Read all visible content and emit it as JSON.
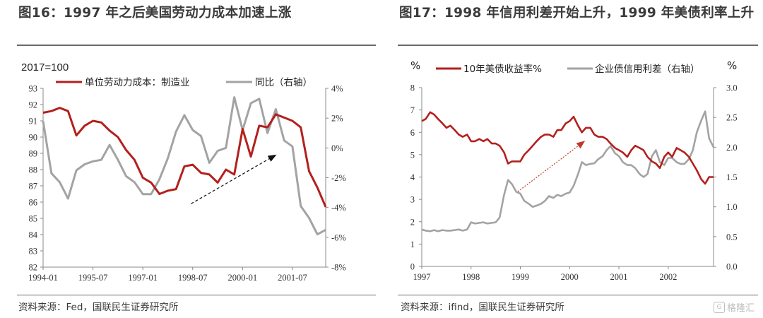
{
  "chart_data": [
    {
      "type": "line",
      "id": "fig16",
      "title": "图16：1997 年之后美国劳动力成本加速上涨",
      "unit_label": "2017=100",
      "source": "资料来源：Fed，国联民生证券研究所",
      "x_ticks": [
        "1994-01",
        "1995-07",
        "1997-01",
        "1998-07",
        "2000-01",
        "2001-07"
      ],
      "x_range": [
        1994.0,
        2002.5
      ],
      "ylim_left": [
        82,
        93
      ],
      "y_ticks_left": [
        "82",
        "83",
        "84",
        "85",
        "86",
        "87",
        "88",
        "89",
        "90",
        "91",
        "92",
        "93"
      ],
      "ylim_right": [
        -8,
        4
      ],
      "y_ticks_right": [
        "4%",
        "2%",
        "0%",
        "-2%",
        "-4%",
        "-6%",
        "-8%"
      ],
      "series": [
        {
          "name": "单位劳动力成本：制造业",
          "axis": "left",
          "color": "#b3201d",
          "x": [
            1994.0,
            1994.25,
            1994.5,
            1994.75,
            1995.0,
            1995.25,
            1995.5,
            1995.75,
            1996.0,
            1996.25,
            1996.5,
            1996.75,
            1997.0,
            1997.25,
            1997.5,
            1997.75,
            1998.0,
            1998.25,
            1998.5,
            1998.75,
            1999.0,
            1999.25,
            1999.5,
            1999.75,
            2000.0,
            2000.25,
            2000.5,
            2000.75,
            2001.0,
            2001.25,
            2001.5,
            2001.75,
            2002.0,
            2002.25,
            2002.5
          ],
          "values": [
            91.5,
            91.6,
            91.8,
            91.6,
            90.1,
            90.7,
            91.0,
            90.9,
            90.4,
            90.0,
            89.2,
            88.6,
            87.5,
            87.2,
            86.5,
            86.7,
            86.8,
            88.2,
            88.3,
            87.8,
            87.7,
            87.2,
            88.0,
            87.7,
            90.5,
            88.8,
            90.7,
            90.6,
            91.4,
            91.2,
            91.0,
            90.6,
            87.9,
            86.9,
            85.7
          ]
        },
        {
          "name": "同比（右轴）",
          "axis": "right",
          "color": "#a3a3a3",
          "x": [
            1994.0,
            1994.25,
            1994.5,
            1994.75,
            1995.0,
            1995.25,
            1995.5,
            1995.75,
            1996.0,
            1996.25,
            1996.5,
            1996.75,
            1997.0,
            1997.25,
            1997.5,
            1997.75,
            1998.0,
            1998.25,
            1998.5,
            1998.75,
            1999.0,
            1999.25,
            1999.5,
            1999.75,
            2000.0,
            2000.25,
            2000.5,
            2000.75,
            2001.0,
            2001.25,
            2001.5,
            2001.75,
            2002.0,
            2002.25,
            2002.5
          ],
          "values": [
            1.8,
            -1.7,
            -2.3,
            -3.4,
            -1.5,
            -1.1,
            -0.9,
            -0.8,
            0.2,
            -0.8,
            -1.9,
            -2.3,
            -3.1,
            -3.1,
            -2.1,
            -0.7,
            1.1,
            2.2,
            1.2,
            0.8,
            -1.0,
            -0.2,
            0.0,
            3.4,
            1.2,
            3.0,
            3.3,
            1.0,
            2.6,
            0.5,
            0.1,
            -3.9,
            -4.7,
            -5.8,
            -5.5
          ]
        }
      ],
      "annotations": [
        {
          "type": "dashed-arrow",
          "from": {
            "x": 1998.45,
            "y": 85.9
          },
          "to": {
            "x": 2001.0,
            "y": 88.9
          }
        }
      ]
    },
    {
      "type": "line",
      "id": "fig17",
      "title": "图17：1998 年信用利差开始上升，1999 年美债利率上升",
      "source": "资料来源：ifind，国联民生证券研究所",
      "left_unit": "%",
      "right_unit": "%",
      "x_ticks": [
        "1997",
        "1998",
        "1999",
        "2000",
        "2001",
        "2002"
      ],
      "x_range": [
        1997.0,
        2002.92
      ],
      "ylim_left": [
        0,
        8
      ],
      "y_ticks_left": [
        "8",
        "7",
        "6",
        "5",
        "4",
        "3",
        "2",
        "1",
        "0"
      ],
      "ylim_right": [
        0.0,
        3.0
      ],
      "y_ticks_right": [
        "3.0",
        "2.5",
        "2.0",
        "1.5",
        "1.0",
        "0.5",
        "0.0"
      ],
      "series": [
        {
          "name": "10年美债收益率%",
          "axis": "left",
          "color": "#b3201d",
          "x": [
            1997.0,
            1997.08,
            1997.17,
            1997.25,
            1997.33,
            1997.42,
            1997.5,
            1997.58,
            1997.67,
            1997.75,
            1997.83,
            1997.92,
            1998.0,
            1998.08,
            1998.17,
            1998.25,
            1998.33,
            1998.42,
            1998.5,
            1998.58,
            1998.67,
            1998.75,
            1998.83,
            1998.92,
            1999.0,
            1999.08,
            1999.17,
            1999.25,
            1999.33,
            1999.42,
            1999.5,
            1999.58,
            1999.67,
            1999.75,
            1999.83,
            1999.92,
            2000.0,
            2000.08,
            2000.17,
            2000.25,
            2000.33,
            2000.42,
            2000.5,
            2000.58,
            2000.67,
            2000.75,
            2000.83,
            2000.92,
            2001.0,
            2001.08,
            2001.17,
            2001.25,
            2001.33,
            2001.42,
            2001.5,
            2001.58,
            2001.67,
            2001.75,
            2001.83,
            2001.92,
            2002.0,
            2002.08,
            2002.17,
            2002.25,
            2002.33,
            2002.42,
            2002.5,
            2002.58,
            2002.67,
            2002.75,
            2002.83,
            2002.92
          ],
          "values": [
            6.5,
            6.6,
            6.9,
            6.8,
            6.6,
            6.4,
            6.2,
            6.3,
            6.1,
            5.9,
            5.8,
            5.9,
            5.6,
            5.6,
            5.7,
            5.6,
            5.7,
            5.5,
            5.5,
            5.4,
            5.1,
            4.6,
            4.7,
            4.7,
            4.7,
            5.0,
            5.2,
            5.4,
            5.6,
            5.8,
            5.9,
            5.9,
            5.8,
            6.1,
            6.1,
            6.4,
            6.5,
            6.7,
            6.3,
            6.0,
            6.2,
            6.2,
            5.9,
            5.8,
            5.8,
            5.7,
            5.5,
            5.3,
            5.2,
            5.1,
            4.9,
            5.2,
            5.4,
            5.3,
            5.2,
            4.9,
            4.7,
            4.6,
            4.4,
            4.9,
            5.1,
            4.9,
            5.3,
            5.2,
            5.1,
            4.9,
            4.6,
            4.3,
            3.9,
            3.7,
            4.0,
            4.0
          ]
        },
        {
          "name": "企业债信用利差（右轴）",
          "axis": "right",
          "color": "#a3a3a3",
          "x": [
            1997.0,
            1997.08,
            1997.17,
            1997.25,
            1997.33,
            1997.42,
            1997.5,
            1997.58,
            1997.67,
            1997.75,
            1997.83,
            1997.92,
            1998.0,
            1998.08,
            1998.17,
            1998.25,
            1998.33,
            1998.42,
            1998.5,
            1998.58,
            1998.67,
            1998.75,
            1998.83,
            1998.92,
            1999.0,
            1999.08,
            1999.17,
            1999.25,
            1999.33,
            1999.42,
            1999.5,
            1999.58,
            1999.67,
            1999.75,
            1999.83,
            1999.92,
            2000.0,
            2000.08,
            2000.17,
            2000.25,
            2000.33,
            2000.42,
            2000.5,
            2000.58,
            2000.67,
            2000.75,
            2000.83,
            2000.92,
            2001.0,
            2001.08,
            2001.17,
            2001.25,
            2001.33,
            2001.42,
            2001.5,
            2001.58,
            2001.67,
            2001.75,
            2001.83,
            2001.92,
            2002.0,
            2002.08,
            2002.17,
            2002.25,
            2002.33,
            2002.42,
            2002.5,
            2002.58,
            2002.67,
            2002.75,
            2002.83,
            2002.92
          ],
          "values": [
            0.62,
            0.6,
            0.59,
            0.61,
            0.59,
            0.61,
            0.6,
            0.6,
            0.61,
            0.62,
            0.6,
            0.62,
            0.74,
            0.72,
            0.73,
            0.74,
            0.72,
            0.73,
            0.74,
            0.82,
            1.2,
            1.45,
            1.38,
            1.25,
            1.22,
            1.1,
            1.05,
            1.0,
            1.02,
            1.05,
            1.1,
            1.18,
            1.15,
            1.2,
            1.18,
            1.22,
            1.24,
            1.35,
            1.55,
            1.75,
            1.7,
            1.72,
            1.73,
            1.8,
            1.85,
            1.95,
            2.02,
            1.9,
            1.85,
            1.75,
            1.7,
            1.7,
            1.65,
            1.55,
            1.5,
            1.55,
            1.85,
            1.95,
            1.75,
            1.7,
            1.82,
            1.82,
            1.75,
            1.72,
            1.72,
            1.8,
            1.95,
            2.25,
            2.45,
            2.6,
            2.15,
            2.0
          ]
        }
      ],
      "annotations": [
        {
          "type": "dotted-arrow",
          "color": "#c0392b",
          "from": {
            "x": 1998.95,
            "y": 3.35
          },
          "to": {
            "x": 2000.3,
            "y": 5.6
          }
        }
      ]
    }
  ],
  "watermark": {
    "text": "格隆汇",
    "icon": "glh-logo-icon"
  }
}
